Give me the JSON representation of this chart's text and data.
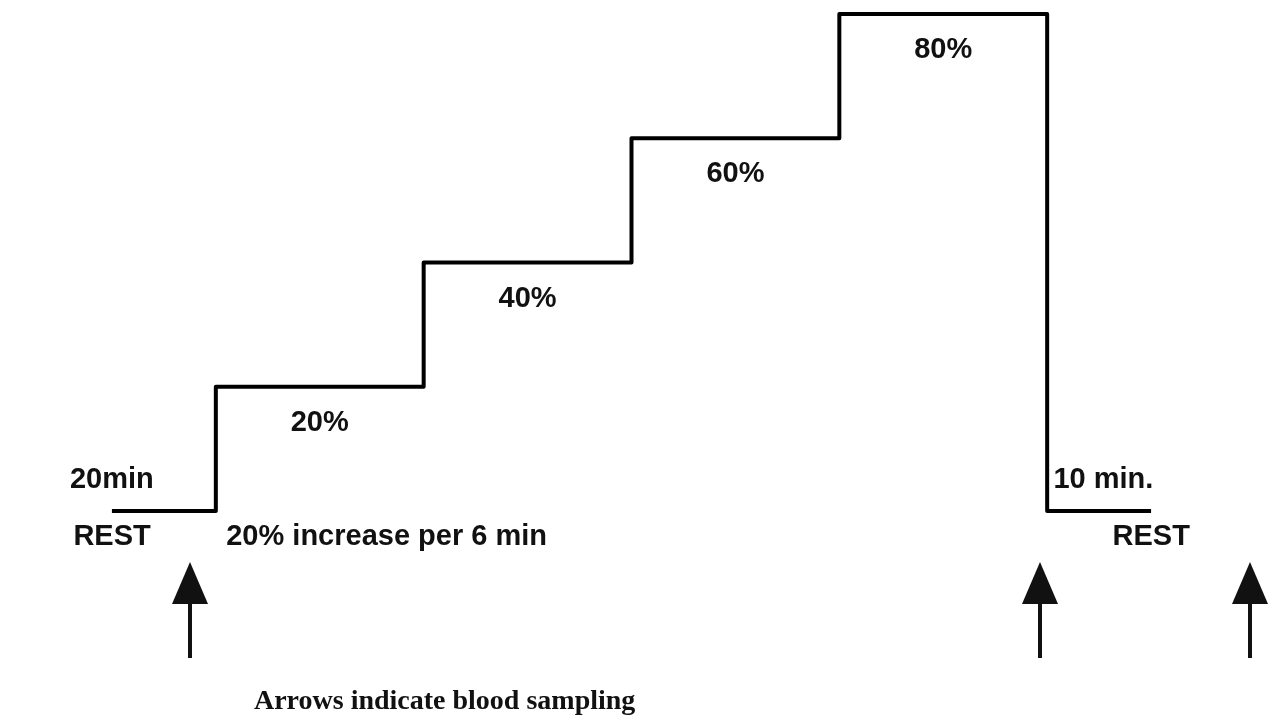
{
  "chart_data": {
    "type": "step",
    "categories": [
      null,
      null,
      null,
      null,
      null,
      null
    ],
    "series": [
      {
        "color": "#000000",
        "values": [
          0,
          20,
          40,
          60,
          80,
          0
        ],
        "value_labels": [
          null,
          "20%",
          "40%",
          "60%",
          "80%",
          null
        ]
      }
    ],
    "annotations": [
      "20min",
      "REST",
      "20% increase per 6 min",
      "10 min.",
      "REST",
      "Arrows indicate blood sampling"
    ],
    "legend": false,
    "tick_labels": false,
    "marker": "none",
    "line_style": "solid"
  }
}
